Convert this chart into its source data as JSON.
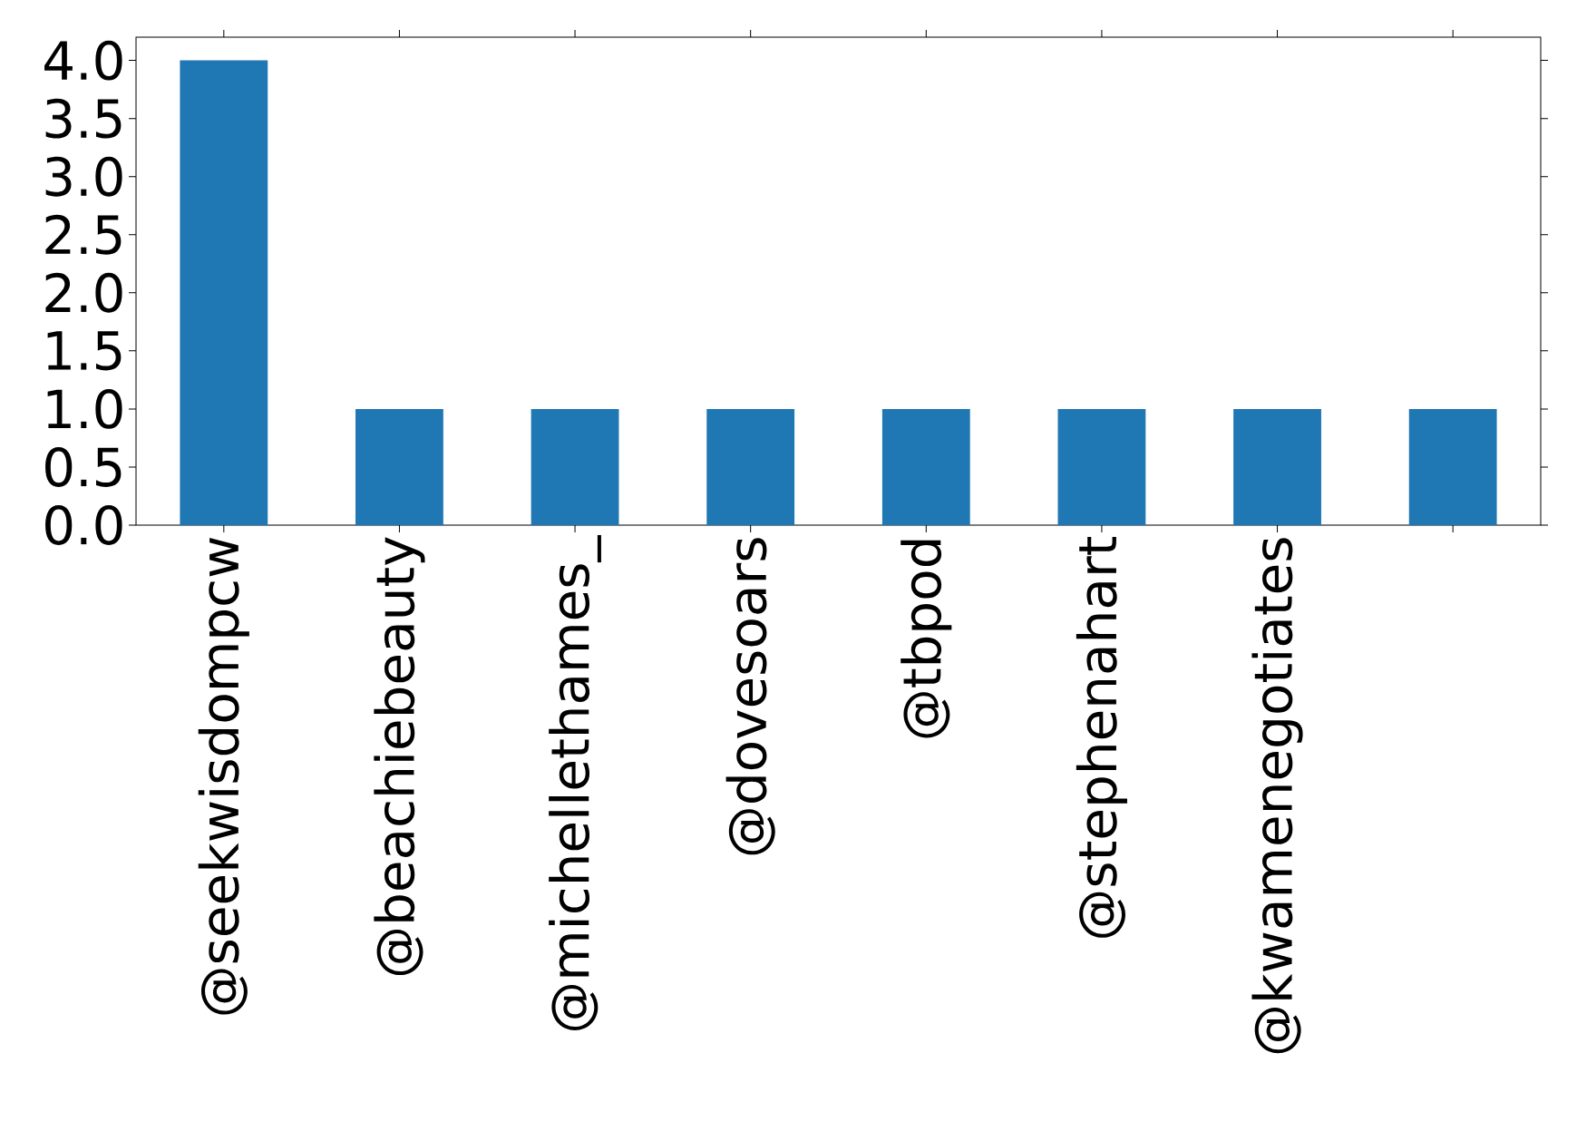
{
  "chart_data": {
    "type": "bar",
    "categories": [
      "@seekwisdompcw",
      "@beachiebeauty",
      "@michellethames_",
      "@dovesoars",
      "@tbpod",
      "@stephenahart",
      "@kwamenegotiates",
      null
    ],
    "values": [
      4,
      1,
      1,
      1,
      1,
      1,
      1,
      1
    ],
    "color": "#1f77b4",
    "ylim": [
      0,
      4.2
    ],
    "yticks": [
      {
        "value": 0,
        "label": "0.0"
      },
      {
        "value": 0.5,
        "label": "0.5"
      },
      {
        "value": 1,
        "label": "1.0"
      },
      {
        "value": 1.5,
        "label": "1.5"
      },
      {
        "value": 2,
        "label": "2.0"
      },
      {
        "value": 2.5,
        "label": "2.5"
      },
      {
        "value": 3,
        "label": "3.0"
      },
      {
        "value": 3.5,
        "label": "3.5"
      },
      {
        "value": 4,
        "label": "4.0"
      }
    ],
    "grid": false
  }
}
